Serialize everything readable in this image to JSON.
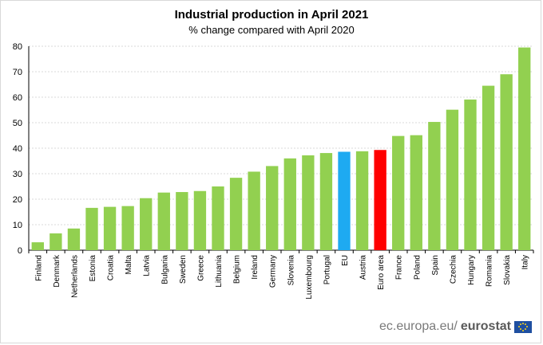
{
  "chart_data": {
    "type": "bar",
    "title": "Industrial production in April 2021",
    "subtitle": "% change compared with April 2020",
    "categories": [
      "Finland",
      "Denmark",
      "Netherlands",
      "Estonia",
      "Croatia",
      "Malta",
      "Latvia",
      "Bulgaria",
      "Sweden",
      "Greece",
      "Lithuania",
      "Belgium",
      "Ireland",
      "Germany",
      "Slovenia",
      "Luxembourg",
      "Portugal",
      "EU",
      "Austria",
      "Euro area",
      "France",
      "Poland",
      "Spain",
      "Czechia",
      "Hungary",
      "Romania",
      "Slovakia",
      "Italy"
    ],
    "values": [
      3.1,
      6.6,
      8.5,
      16.6,
      17.0,
      17.3,
      20.4,
      22.6,
      22.8,
      23.2,
      25.0,
      28.4,
      30.8,
      33.0,
      36.0,
      37.2,
      38.1,
      38.6,
      38.8,
      39.3,
      44.8,
      45.1,
      50.3,
      55.1,
      59.1,
      64.5,
      69.0,
      79.5
    ],
    "ylim": [
      0,
      80
    ],
    "yticks": [
      0,
      10,
      20,
      30,
      40,
      50,
      60,
      70,
      80
    ],
    "grid": true,
    "colors": {
      "default": "#92d050",
      "EU": "#1eaaf1",
      "Euro area": "#ff0000"
    }
  },
  "footer": {
    "source": "ec.europa.eu/",
    "brand": "eurostat"
  }
}
